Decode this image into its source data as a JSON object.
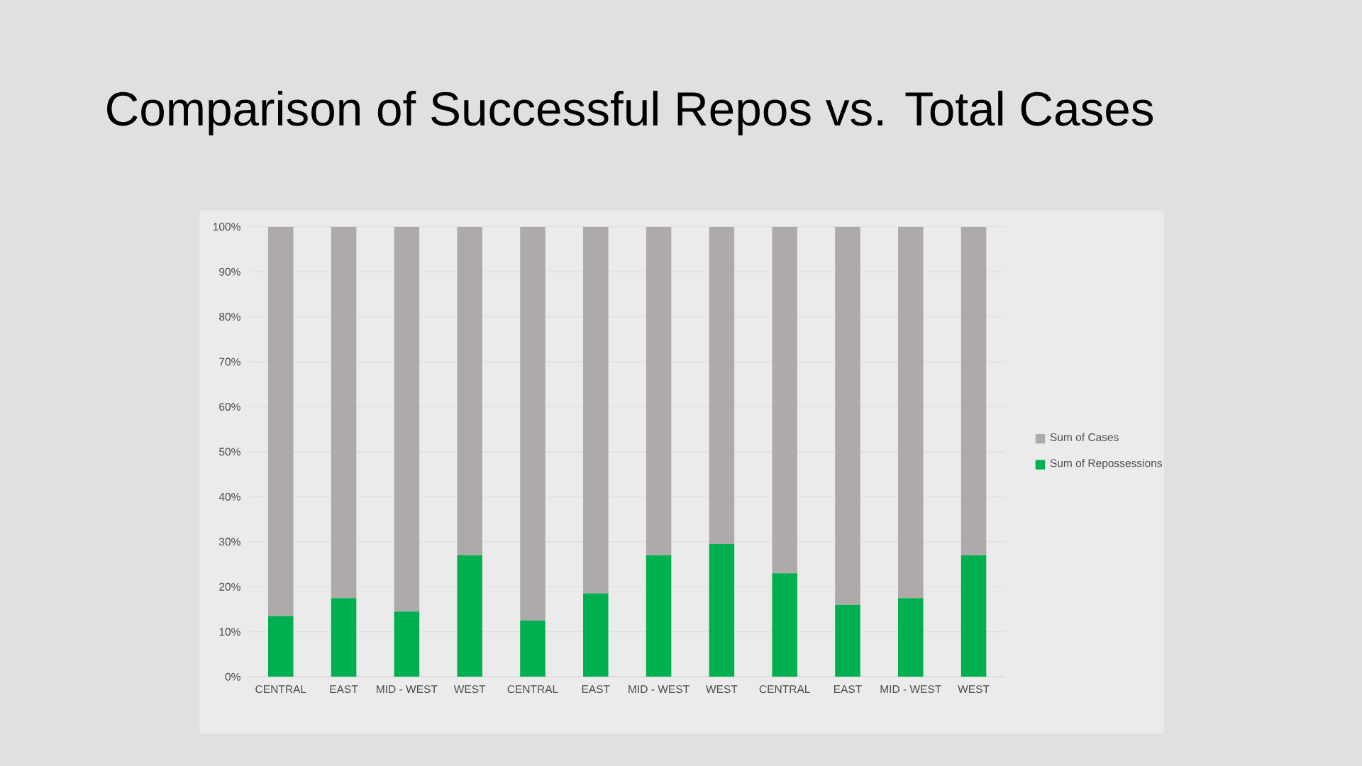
{
  "chart_data": {
    "type": "bar",
    "title": "Comparison of Successful Repos vs. Total Cases",
    "categories": [
      "CENTRAL",
      "EAST",
      "MID - WEST",
      "WEST",
      "CENTRAL",
      "EAST",
      "MID - WEST",
      "WEST",
      "CENTRAL",
      "EAST",
      "MID - WEST",
      "WEST"
    ],
    "stacked": true,
    "series": [
      {
        "name": "Sum of Repossessions",
        "color": "#00b050",
        "values": [
          13.5,
          17.5,
          14.5,
          27,
          12.5,
          18.5,
          27,
          29.5,
          23,
          16,
          17.5,
          27
        ]
      },
      {
        "name": "Sum of Cases",
        "color": "#aeaaaa",
        "values": [
          86.5,
          82.5,
          85.5,
          73,
          87.5,
          81.5,
          73,
          70.5,
          77,
          84,
          82.5,
          73
        ]
      }
    ],
    "ylim": [
      0,
      100
    ],
    "yticks": [
      {
        "value": 0,
        "label": "0%"
      },
      {
        "value": 10,
        "label": "10%"
      },
      {
        "value": 20,
        "label": "20%"
      },
      {
        "value": 30,
        "label": "30%"
      },
      {
        "value": 40,
        "label": "40%"
      },
      {
        "value": 50,
        "label": "50%"
      },
      {
        "value": 60,
        "label": "60%"
      },
      {
        "value": 70,
        "label": "70%"
      },
      {
        "value": 80,
        "label": "80%"
      },
      {
        "value": 90,
        "label": "90%"
      },
      {
        "value": 100,
        "label": "100%"
      }
    ],
    "grid": "y",
    "legend": "right"
  }
}
